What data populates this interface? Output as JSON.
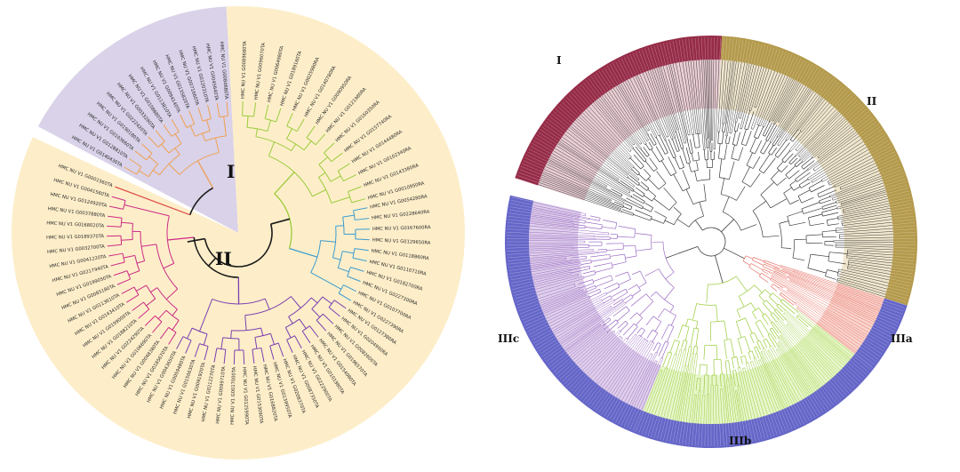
{
  "left_tree": {
    "clade_labels": {
      "I": "I",
      "II": "II"
    },
    "colors": {
      "sector_purple": "#d9d2e9",
      "sector_yellow": "#fdeec9",
      "orange": "#f0a050",
      "red": "#e0504a",
      "green": "#9acc3c",
      "blue": "#3a9bd0",
      "violet": "#7b3fb0",
      "magenta": "#cc2a86",
      "black": "#1a1a1a"
    },
    "groups": [
      {
        "name": "purple_orange",
        "color": "orange",
        "sector": "sector_purple",
        "labels": [
          "HMC NU V1 G0140430TA",
          "HMC NU V1 G0128810TA",
          "HMC NU V1 G0103660TA",
          "HMC NU V1 G0190180TA",
          "HMC NU V1 G0222420TA",
          "HMC NU V1 G0033290TA",
          "HMC NU V1 G0108680TA",
          "HMC NU V1 G0113810TA",
          "HMC NU V1 G0094140TA",
          "HMC NU V1 G0135820TA",
          "HMC NU V1 G0071660TA",
          "HMC NU V1 G0120310TA",
          "HMC NU V1 G0045640TA",
          "HMC NU V1 G0084680TA"
        ]
      },
      {
        "name": "green",
        "color": "green",
        "sector": "sector_yellow",
        "labels": [
          "HMC NU V1 G0089680TA",
          "HMC NU V1 G0096070TA",
          "HMC NU V1 G0064980TA",
          "HMC NU V1 G0189160TA",
          "HMC NU V1 G0025980RA",
          "HMC NU V1 G0140780RA",
          "HMC NU V1 G0090950RA",
          "HMC NU V1 G0121980RA",
          "HMC NU V1 G0160350RA",
          "HMC NU V1 G0157740RA",
          "HMC NU V1 G0144480RA",
          "HMC NU V1 G0102340RA",
          "HMC NU V1 G0143380RA",
          "HMC NU V1 G0010950RA"
        ]
      },
      {
        "name": "blue",
        "color": "blue",
        "sector": "sector_yellow",
        "labels": [
          "HMC NU V1 G0054280RA",
          "HMC NU V1 G0228640RA",
          "HMC NU V1 G0167600RA",
          "HMC NU V1 G0129650RA",
          "HMC NU V1 G0118860RA",
          "HMC NU V1 G0110710RA",
          "HMC NU V1 G0182700RA",
          "HMC NU V1 G0227300RA",
          "HMC NU V1 G0107700RA",
          "HMC NU V1 G0227390RA"
        ]
      },
      {
        "name": "violet",
        "color": "violet",
        "sector": "sector_yellow",
        "labels": [
          "HMC NU V1 G0127380RA",
          "HMC NU V1 G0204900RA",
          "HMC NU V1 G0082600TA",
          "HMC NU V1 G0196570TA",
          "HMC NU V1 G0154080TA",
          "HMC NU V1 G0101980TA",
          "HMC NU V1 G0222900TA",
          "HMC NU V1 G0087350TA",
          "HMC NU V1 G0208370TA",
          "HMC NU V1 G0139950TA",
          "HMC NU V1 G0168820TA",
          "HMC NU V1 G0153090TA",
          "HMC NU V1 G0125990TA",
          "HMC NU V1 G0017000TA",
          "HMC NU V1 G0099710TA",
          "HMC NU V1 G0212270TA",
          "HMC NU V1 G0091920TA",
          "HMC NU V1 G0150630TA",
          "HMC NU V1 G0059480TA",
          "HMC NU V1 G0043650TA"
        ]
      },
      {
        "name": "magenta",
        "color": "magenta",
        "sector": "sector_yellow",
        "labels": [
          "HMC NU V1 G0185670TA",
          "HMC NU V1 G0048380TA",
          "HMC NU V1 G0106690TA",
          "HMC NU V1 G0224290TA",
          "HMC NU V1 G0188210TA",
          "HMC NU V1 G0199000TA",
          "HMC NU V1 G0143410TA",
          "HMC NU V1 G0113610TA",
          "HMC NU V1 G0085180TA",
          "HMC NU V1 G0199050TA",
          "HMC NU V1 G0217940TA",
          "HMC NU V1 G0041220TA",
          "HMC NU V1 G0032700TA",
          "HMC NU V1 G0189370TA",
          "HMC NU V1 G0168020TA",
          "HMC NU V1 G0037880TA",
          "HMC NU V1 G0124920TA",
          "HMC NU V1 G0041560TA"
        ]
      },
      {
        "name": "red",
        "color": "red",
        "sector": "sector_yellow",
        "labels": [
          "HMC NU V1 G0001560TA"
        ]
      }
    ]
  },
  "right_tree": {
    "clade_labels": {
      "I": "I",
      "II": "II",
      "IIIa": "IIIa",
      "IIIb": "IIIb",
      "IIIc": "IIIc"
    },
    "colors": {
      "ring_I": "#962c48",
      "ring_II": "#b49a4c",
      "ring_III": "#6566c8",
      "fan_I": "#d9a4b0",
      "fan_II": "#e4d2a4",
      "fan_IIIa": "#f3b0a4",
      "fan_IIIb": "#d4eea0",
      "fan_IIIc": "#c2a8d8",
      "branch_grey": "#3c3c3c",
      "branch_salmon": "#e8766a",
      "branch_green": "#9acc3c",
      "branch_purple": "#9b6cc4"
    }
  }
}
